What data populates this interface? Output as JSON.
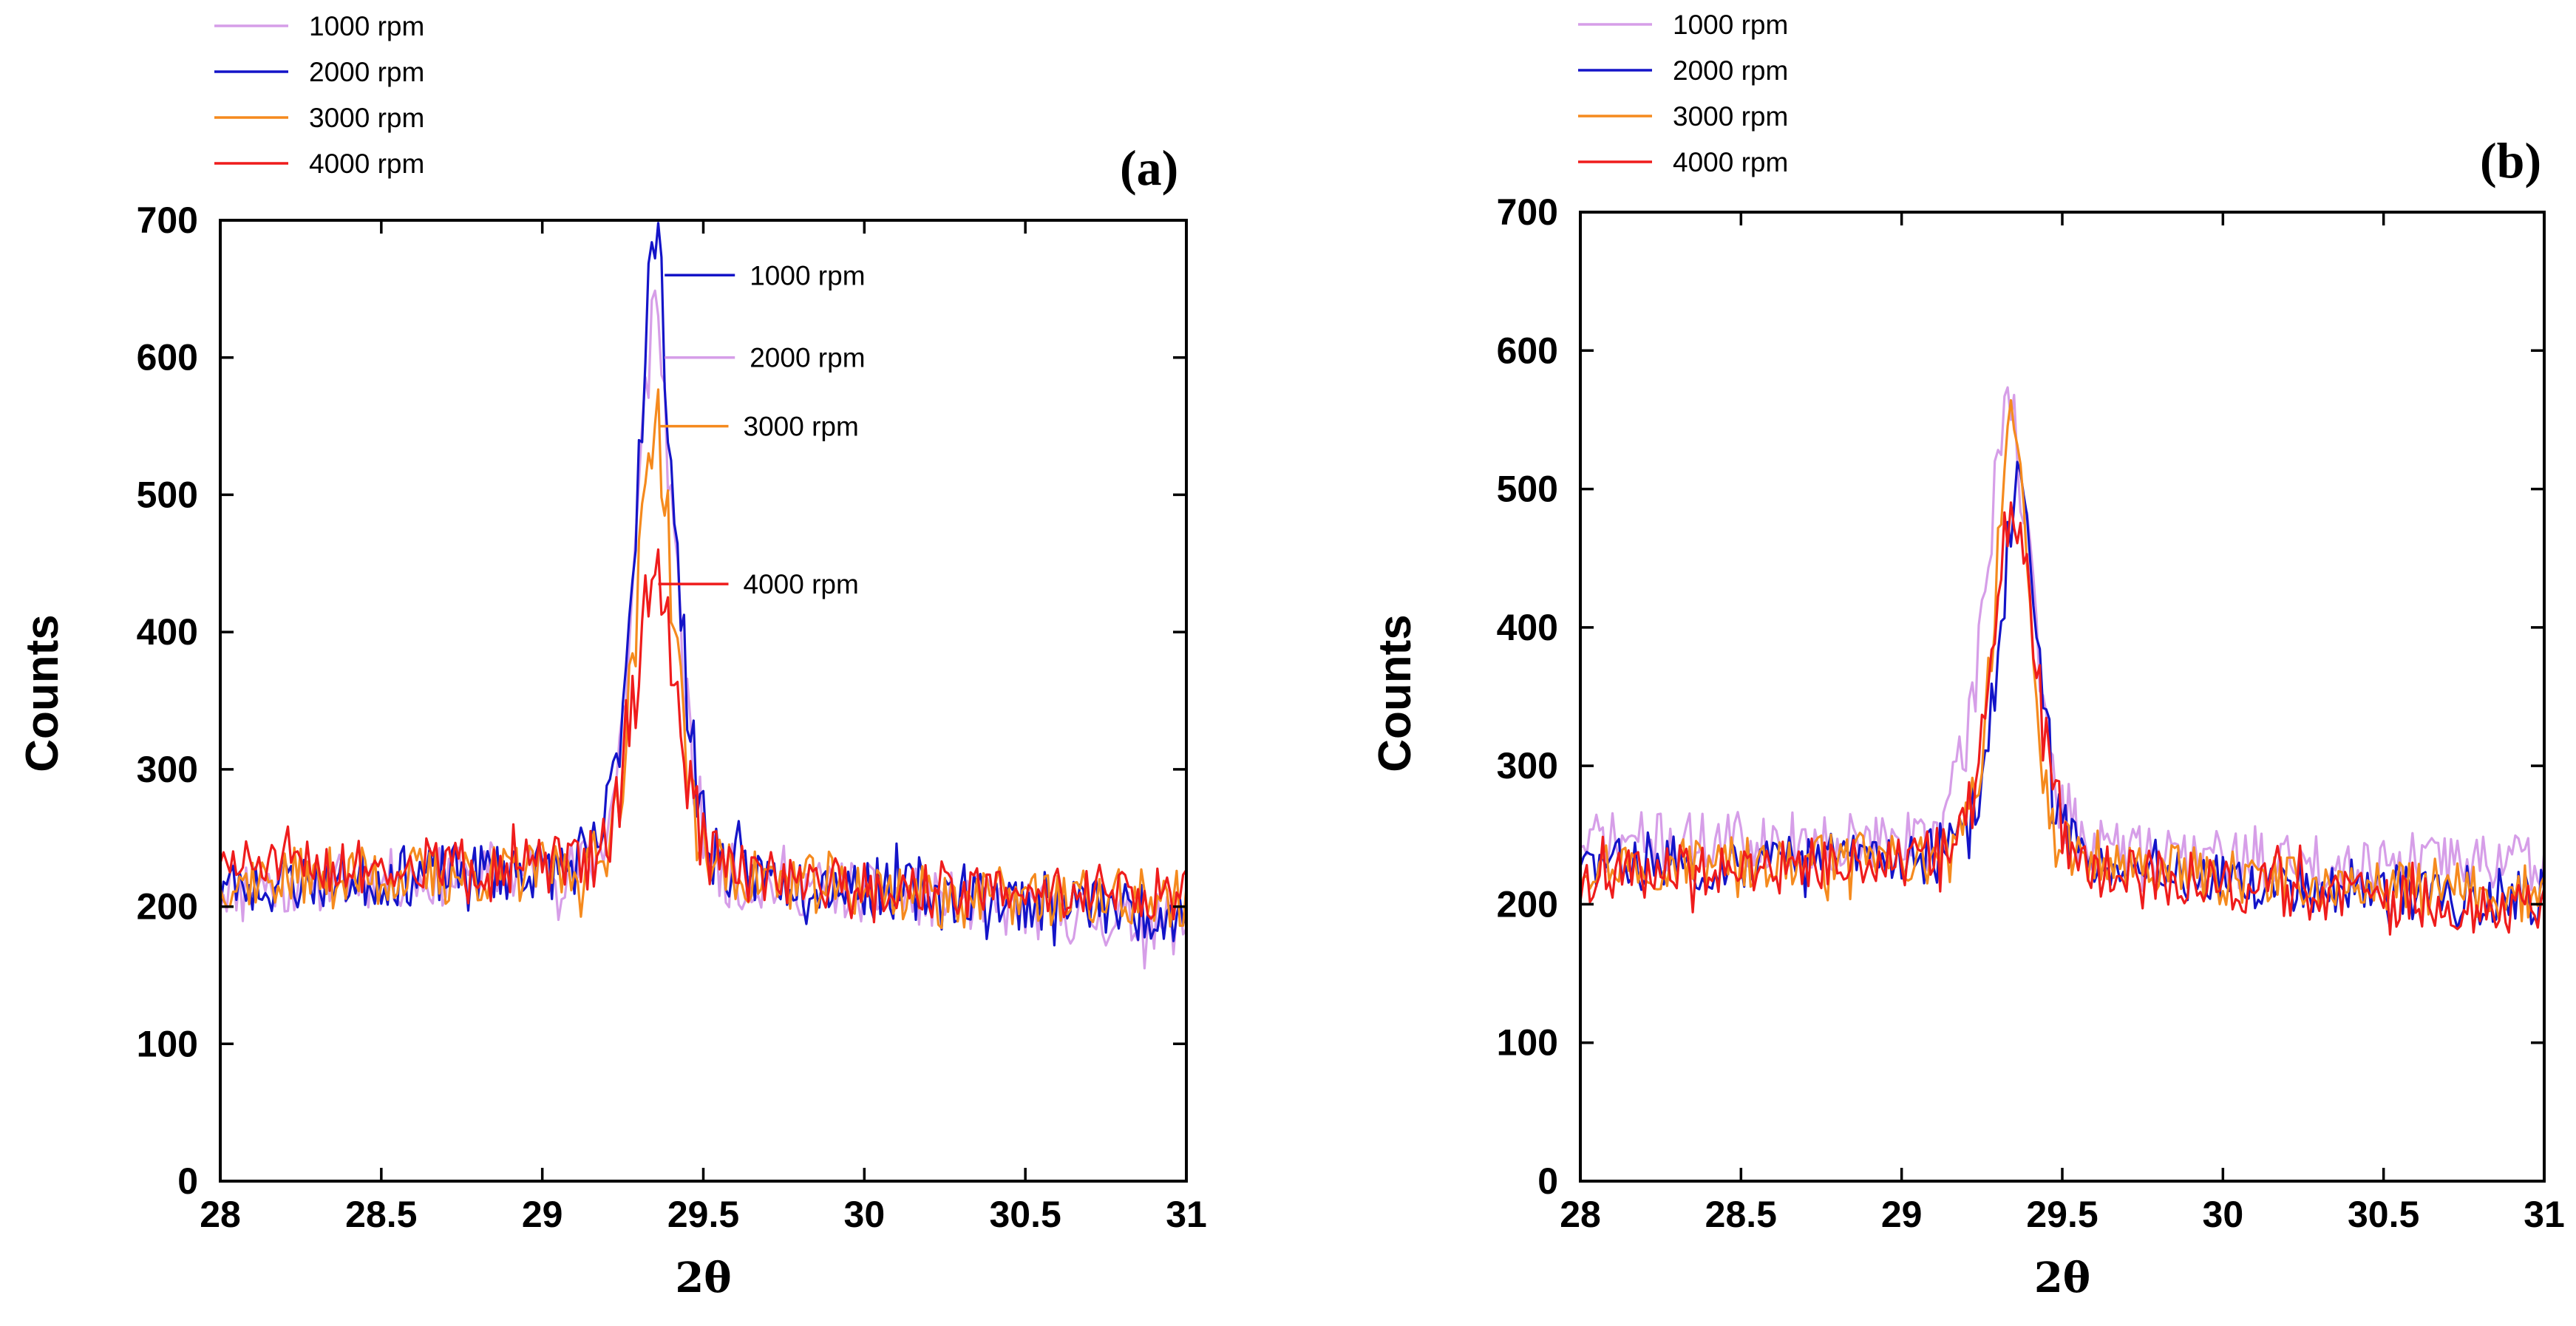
{
  "series_colors": {
    "1000 rpm": "#d69ee8",
    "2000 rpm": "#1414c8",
    "3000 rpm": "#f58a1e",
    "4000 rpm": "#ef1c1c"
  },
  "chart_data": [
    {
      "type": "line",
      "panel_label": "(a)",
      "xlabel": "2θ",
      "ylabel": "Counts",
      "xlim": [
        28,
        31
      ],
      "ylim": [
        0,
        700
      ],
      "x_ticks": [
        "28",
        "28.5",
        "29",
        "29.5",
        "30",
        "30.5",
        "31"
      ],
      "y_ticks": [
        "0",
        "100",
        "200",
        "300",
        "400",
        "500",
        "600",
        "700"
      ],
      "legend": [
        "1000 rpm",
        "2000 rpm",
        "3000 rpm",
        "4000 rpm"
      ],
      "legend_position": "top-left-outside",
      "annotations": [
        {
          "text": "1000 rpm",
          "series": "2000 rpm",
          "x": 29.38,
          "y": 660
        },
        {
          "text": "2000 rpm",
          "series": "1000 rpm",
          "x": 29.38,
          "y": 600
        },
        {
          "text": "3000 rpm",
          "series": "3000 rpm",
          "x": 29.36,
          "y": 550
        },
        {
          "text": "4000 rpm",
          "series": "4000 rpm",
          "x": 29.36,
          "y": 435
        }
      ],
      "series": [
        {
          "name": "1000 rpm",
          "peak_x": 29.35,
          "peak_y": 640,
          "hw": 0.085,
          "baseline": [
            [
              28,
              215
            ],
            [
              29.05,
              225
            ],
            [
              29.6,
              220
            ],
            [
              30.2,
              205
            ],
            [
              31,
              185
            ]
          ],
          "noise": 22,
          "seed": 11
        },
        {
          "name": "2000 rpm",
          "peak_x": 29.35,
          "peak_y": 690,
          "hw": 0.085,
          "baseline": [
            [
              28,
              215
            ],
            [
              29.05,
              228
            ],
            [
              29.6,
              225
            ],
            [
              30.2,
              210
            ],
            [
              31,
              195
            ]
          ],
          "noise": 22,
          "seed": 23
        },
        {
          "name": "3000 rpm",
          "peak_x": 29.35,
          "peak_y": 565,
          "hw": 0.08,
          "baseline": [
            [
              28,
              220
            ],
            [
              29.05,
              225
            ],
            [
              29.6,
              222
            ],
            [
              30.2,
              208
            ],
            [
              31,
              205
            ]
          ],
          "noise": 22,
          "seed": 37
        },
        {
          "name": "4000 rpm",
          "peak_x": 29.35,
          "peak_y": 450,
          "hw": 0.09,
          "baseline": [
            [
              28,
              230
            ],
            [
              29.05,
              230
            ],
            [
              29.6,
              225
            ],
            [
              30.2,
              212
            ],
            [
              31,
              210
            ]
          ],
          "noise": 20,
          "seed": 51
        }
      ]
    },
    {
      "type": "line",
      "panel_label": "(b)",
      "xlabel": "2θ",
      "ylabel": "Counts",
      "xlim": [
        28,
        31
      ],
      "ylim": [
        0,
        700
      ],
      "x_ticks": [
        "28",
        "28.5",
        "29",
        "29.5",
        "30",
        "30.5",
        "31"
      ],
      "y_ticks": [
        "0",
        "100",
        "200",
        "300",
        "400",
        "500",
        "600",
        "700"
      ],
      "legend": [
        "1000 rpm",
        "2000 rpm",
        "3000 rpm",
        "4000 rpm"
      ],
      "legend_position": "top-left-outside",
      "annotations": [],
      "series": [
        {
          "name": "1000 rpm",
          "peak_x": 29.33,
          "peak_y": 575,
          "hw": 0.1,
          "baseline": [
            [
              28,
              245
            ],
            [
              29.05,
              245
            ],
            [
              29.6,
              240
            ],
            [
              30.2,
              230
            ],
            [
              31,
              232
            ]
          ],
          "noise": 22,
          "seed": 71
        },
        {
          "name": "2000 rpm",
          "peak_x": 29.36,
          "peak_y": 505,
          "hw": 0.085,
          "baseline": [
            [
              28,
              228
            ],
            [
              29.05,
              235
            ],
            [
              29.6,
              232
            ],
            [
              30.2,
              215
            ],
            [
              31,
              205
            ]
          ],
          "noise": 20,
          "seed": 83
        },
        {
          "name": "3000 rpm",
          "peak_x": 29.34,
          "peak_y": 560,
          "hw": 0.075,
          "baseline": [
            [
              28,
              230
            ],
            [
              29.05,
              232
            ],
            [
              29.6,
              228
            ],
            [
              30.2,
              215
            ],
            [
              31,
              205
            ]
          ],
          "noise": 20,
          "seed": 97
        },
        {
          "name": "4000 rpm",
          "peak_x": 29.35,
          "peak_y": 500,
          "hw": 0.09,
          "baseline": [
            [
              28,
              220
            ],
            [
              29.05,
              232
            ],
            [
              29.6,
              225
            ],
            [
              30.2,
              210
            ],
            [
              31,
              195
            ]
          ],
          "noise": 20,
          "seed": 109
        }
      ]
    }
  ]
}
